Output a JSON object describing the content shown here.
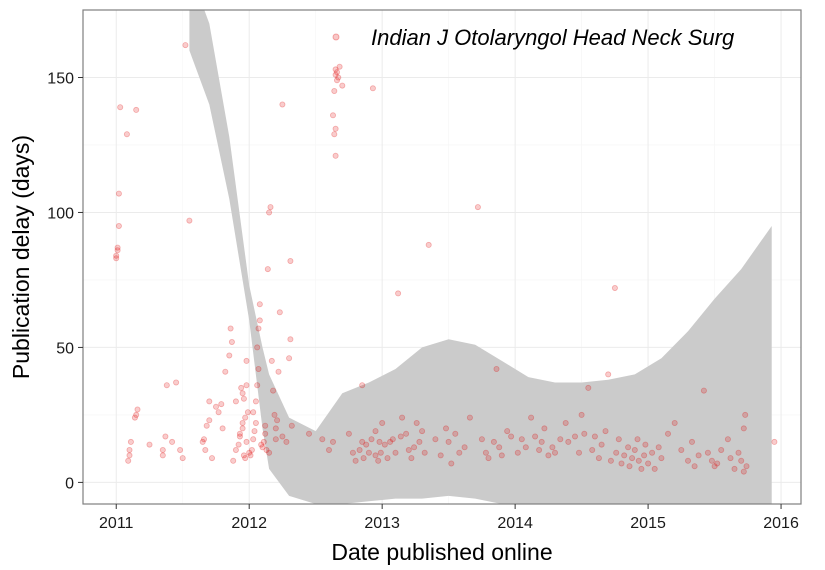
{
  "chart_data": {
    "type": "scatter",
    "xlabel": "Date published online",
    "ylabel": "Publication delay (days)",
    "xlim": [
      2010.75,
      2016.15
    ],
    "ylim": [
      -8,
      175
    ],
    "x_ticks": [
      2011,
      2012,
      2013,
      2014,
      2015,
      2016
    ],
    "y_ticks": [
      0,
      50,
      100,
      150
    ],
    "grid": true,
    "legend_position": "top-right",
    "colors": {
      "points": "#e00000",
      "band": "#cbcbcb",
      "panel_border": "#7f7f7f",
      "grid_major": "#ebebeb",
      "grid_minor": "#f5f5f5"
    },
    "series": [
      {
        "name": "Indian J Otolaryngol Head Neck Surg",
        "points": [
          [
            2011.0,
            83
          ],
          [
            2011.0,
            84
          ],
          [
            2011.01,
            86
          ],
          [
            2011.01,
            87
          ],
          [
            2011.02,
            107
          ],
          [
            2011.02,
            95
          ],
          [
            2011.03,
            139
          ],
          [
            2011.08,
            129
          ],
          [
            2011.15,
            138
          ],
          [
            2011.1,
            10
          ],
          [
            2011.1,
            12
          ],
          [
            2011.11,
            15
          ],
          [
            2011.09,
            8
          ],
          [
            2011.14,
            24
          ],
          [
            2011.15,
            25
          ],
          [
            2011.16,
            27
          ],
          [
            2011.25,
            14
          ],
          [
            2011.35,
            10
          ],
          [
            2011.35,
            12
          ],
          [
            2011.37,
            17
          ],
          [
            2011.38,
            36
          ],
          [
            2011.42,
            15
          ],
          [
            2011.45,
            37
          ],
          [
            2011.48,
            12
          ],
          [
            2011.5,
            9
          ],
          [
            2011.52,
            162
          ],
          [
            2011.55,
            97
          ],
          [
            2011.65,
            15
          ],
          [
            2011.66,
            16
          ],
          [
            2011.67,
            12
          ],
          [
            2011.68,
            21
          ],
          [
            2011.7,
            23
          ],
          [
            2011.7,
            30
          ],
          [
            2011.72,
            9
          ],
          [
            2011.75,
            28
          ],
          [
            2011.77,
            26
          ],
          [
            2011.79,
            29
          ],
          [
            2011.8,
            20
          ],
          [
            2011.82,
            41
          ],
          [
            2011.85,
            47
          ],
          [
            2011.86,
            57
          ],
          [
            2011.87,
            52
          ],
          [
            2011.9,
            30
          ],
          [
            2011.88,
            8
          ],
          [
            2011.9,
            12
          ],
          [
            2011.92,
            14
          ],
          [
            2011.93,
            17
          ],
          [
            2011.95,
            20
          ],
          [
            2011.95,
            22
          ],
          [
            2011.96,
            10
          ],
          [
            2011.97,
            9
          ],
          [
            2011.98,
            15
          ],
          [
            2011.93,
            18
          ],
          [
            2011.97,
            24
          ],
          [
            2011.99,
            26
          ],
          [
            2011.96,
            31
          ],
          [
            2011.98,
            36
          ],
          [
            2011.98,
            45
          ],
          [
            2011.95,
            33
          ],
          [
            2011.94,
            35
          ],
          [
            2012.0,
            11
          ],
          [
            2012.01,
            10
          ],
          [
            2012.02,
            12
          ],
          [
            2012.03,
            16
          ],
          [
            2012.04,
            19
          ],
          [
            2012.05,
            22
          ],
          [
            2012.05,
            30
          ],
          [
            2012.06,
            36
          ],
          [
            2012.07,
            42
          ],
          [
            2012.06,
            50
          ],
          [
            2012.07,
            57
          ],
          [
            2012.08,
            60
          ],
          [
            2012.08,
            66
          ],
          [
            2012.03,
            26
          ],
          [
            2012.09,
            14
          ],
          [
            2012.1,
            13
          ],
          [
            2012.11,
            15
          ],
          [
            2012.12,
            18
          ],
          [
            2012.12,
            21
          ],
          [
            2012.13,
            12
          ],
          [
            2012.14,
            79
          ],
          [
            2012.15,
            100
          ],
          [
            2012.16,
            102
          ],
          [
            2012.17,
            45
          ],
          [
            2012.18,
            34
          ],
          [
            2012.19,
            25
          ],
          [
            2012.2,
            16
          ],
          [
            2012.21,
            23
          ],
          [
            2012.22,
            41
          ],
          [
            2012.23,
            63
          ],
          [
            2012.25,
            140
          ],
          [
            2012.28,
            15
          ],
          [
            2012.3,
            46
          ],
          [
            2012.31,
            53
          ],
          [
            2012.31,
            82
          ],
          [
            2012.32,
            21
          ],
          [
            2012.25,
            17
          ],
          [
            2012.2,
            20
          ],
          [
            2012.15,
            11
          ],
          [
            2012.45,
            18
          ],
          [
            2012.55,
            16
          ],
          [
            2012.6,
            12
          ],
          [
            2012.63,
            15
          ],
          [
            2012.65,
            153
          ],
          [
            2012.65,
            151
          ],
          [
            2012.66,
            152
          ],
          [
            2012.66,
            149
          ],
          [
            2012.64,
            145
          ],
          [
            2012.63,
            136
          ],
          [
            2012.65,
            131
          ],
          [
            2012.64,
            129
          ],
          [
            2012.65,
            121
          ],
          [
            2012.67,
            150
          ],
          [
            2012.7,
            147
          ],
          [
            2012.68,
            154
          ],
          [
            2012.93,
            146
          ],
          [
            2012.75,
            18
          ],
          [
            2012.78,
            11
          ],
          [
            2012.8,
            8
          ],
          [
            2012.83,
            12
          ],
          [
            2012.85,
            15
          ],
          [
            2012.86,
            9
          ],
          [
            2012.88,
            14
          ],
          [
            2012.9,
            11
          ],
          [
            2012.92,
            16
          ],
          [
            2012.95,
            10
          ],
          [
            2012.98,
            15
          ],
          [
            2012.85,
            36
          ],
          [
            2012.95,
            19
          ],
          [
            2012.97,
            8
          ],
          [
            2012.99,
            11
          ],
          [
            2013.0,
            22
          ],
          [
            2013.02,
            14
          ],
          [
            2013.04,
            9
          ],
          [
            2013.06,
            15
          ],
          [
            2013.08,
            16
          ],
          [
            2013.1,
            11
          ],
          [
            2013.12,
            70
          ],
          [
            2013.14,
            17
          ],
          [
            2013.15,
            24
          ],
          [
            2013.18,
            18
          ],
          [
            2013.2,
            12
          ],
          [
            2013.22,
            9
          ],
          [
            2013.24,
            13
          ],
          [
            2013.26,
            22
          ],
          [
            2013.28,
            15
          ],
          [
            2013.3,
            19
          ],
          [
            2013.32,
            11
          ],
          [
            2013.35,
            88
          ],
          [
            2013.4,
            16
          ],
          [
            2013.44,
            10
          ],
          [
            2013.48,
            20
          ],
          [
            2013.5,
            15
          ],
          [
            2013.52,
            7
          ],
          [
            2013.55,
            18
          ],
          [
            2013.58,
            11
          ],
          [
            2013.62,
            13
          ],
          [
            2013.66,
            24
          ],
          [
            2013.72,
            102
          ],
          [
            2013.75,
            16
          ],
          [
            2013.78,
            11
          ],
          [
            2013.8,
            9
          ],
          [
            2013.84,
            15
          ],
          [
            2013.86,
            42
          ],
          [
            2013.88,
            13
          ],
          [
            2013.9,
            10
          ],
          [
            2013.94,
            19
          ],
          [
            2013.97,
            17
          ],
          [
            2014.02,
            11
          ],
          [
            2014.05,
            16
          ],
          [
            2014.08,
            13
          ],
          [
            2014.12,
            24
          ],
          [
            2014.15,
            17
          ],
          [
            2014.18,
            12
          ],
          [
            2014.2,
            15
          ],
          [
            2014.22,
            20
          ],
          [
            2014.25,
            10
          ],
          [
            2014.28,
            13
          ],
          [
            2014.3,
            11
          ],
          [
            2014.34,
            16
          ],
          [
            2014.38,
            22
          ],
          [
            2014.4,
            15
          ],
          [
            2014.45,
            17
          ],
          [
            2014.48,
            11
          ],
          [
            2014.5,
            25
          ],
          [
            2014.52,
            18
          ],
          [
            2014.55,
            35
          ],
          [
            2014.58,
            12
          ],
          [
            2014.6,
            17
          ],
          [
            2014.63,
            9
          ],
          [
            2014.65,
            14
          ],
          [
            2014.68,
            19
          ],
          [
            2014.7,
            40
          ],
          [
            2014.72,
            8
          ],
          [
            2014.75,
            72
          ],
          [
            2014.76,
            11
          ],
          [
            2014.78,
            16
          ],
          [
            2014.8,
            7
          ],
          [
            2014.82,
            10
          ],
          [
            2014.85,
            13
          ],
          [
            2014.86,
            6
          ],
          [
            2014.88,
            9
          ],
          [
            2014.9,
            12
          ],
          [
            2014.92,
            16
          ],
          [
            2014.93,
            8
          ],
          [
            2014.95,
            5
          ],
          [
            2014.97,
            10
          ],
          [
            2014.98,
            14
          ],
          [
            2015.0,
            7
          ],
          [
            2015.03,
            11
          ],
          [
            2015.05,
            5
          ],
          [
            2015.08,
            13
          ],
          [
            2015.1,
            9
          ],
          [
            2015.15,
            18
          ],
          [
            2015.2,
            22
          ],
          [
            2015.25,
            12
          ],
          [
            2015.3,
            8
          ],
          [
            2015.33,
            15
          ],
          [
            2015.35,
            6
          ],
          [
            2015.38,
            10
          ],
          [
            2015.42,
            34
          ],
          [
            2015.45,
            11
          ],
          [
            2015.48,
            8
          ],
          [
            2015.5,
            6
          ],
          [
            2015.52,
            7
          ],
          [
            2015.55,
            12
          ],
          [
            2015.6,
            16
          ],
          [
            2015.62,
            9
          ],
          [
            2015.65,
            5
          ],
          [
            2015.68,
            11
          ],
          [
            2015.7,
            8
          ],
          [
            2015.72,
            20
          ],
          [
            2015.73,
            25
          ],
          [
            2015.72,
            4
          ],
          [
            2015.74,
            6
          ],
          [
            2015.95,
            15
          ]
        ]
      }
    ],
    "band": {
      "x": [
        2011.55,
        2011.7,
        2011.85,
        2012.0,
        2012.1,
        2012.15,
        2012.3,
        2012.5,
        2012.7,
        2012.9,
        2013.1,
        2013.3,
        2013.5,
        2013.7,
        2013.9,
        2014.1,
        2014.3,
        2014.5,
        2014.7,
        2014.9,
        2015.1,
        2015.3,
        2015.5,
        2015.7,
        2015.93
      ],
      "upper": [
        190,
        170,
        128,
        73,
        50,
        40,
        24,
        19,
        33,
        37,
        42,
        50,
        53,
        51,
        45,
        39,
        37,
        37,
        38,
        40,
        46,
        56,
        68,
        79,
        95
      ],
      "lower": [
        160,
        140,
        105,
        60,
        20,
        5,
        -5,
        -8,
        -8,
        -7,
        -6,
        -6,
        -5,
        -6,
        -8,
        -8,
        -8,
        -8,
        -8,
        -8,
        -8,
        -8,
        -8,
        -8,
        -8
      ]
    }
  }
}
